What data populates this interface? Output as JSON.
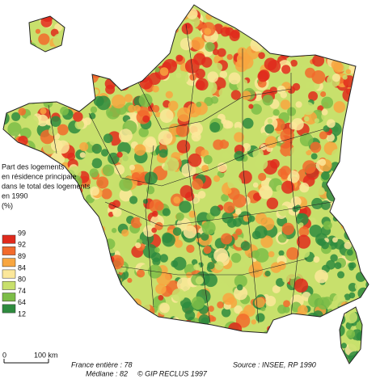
{
  "legend": {
    "title": [
      "Part des logements",
      "en résidence principale",
      "dans le total des logements",
      "en 1990"
    ],
    "unit": "(%)",
    "breaks": [
      99,
      92,
      89,
      84,
      80,
      74,
      64,
      12
    ],
    "colors": [
      "#e02a1c",
      "#f26a2c",
      "#f8a640",
      "#fbe79a",
      "#c8e06c",
      "#7cbd48",
      "#2e8b3e"
    ]
  },
  "scale": {
    "start": "0",
    "end": "100 km"
  },
  "notes": {
    "france": "France entière : 78",
    "median": "Médiane : 82",
    "copyright": "© GIP RECLUS 1997",
    "source": "Source : INSEE, RP 1990"
  }
}
